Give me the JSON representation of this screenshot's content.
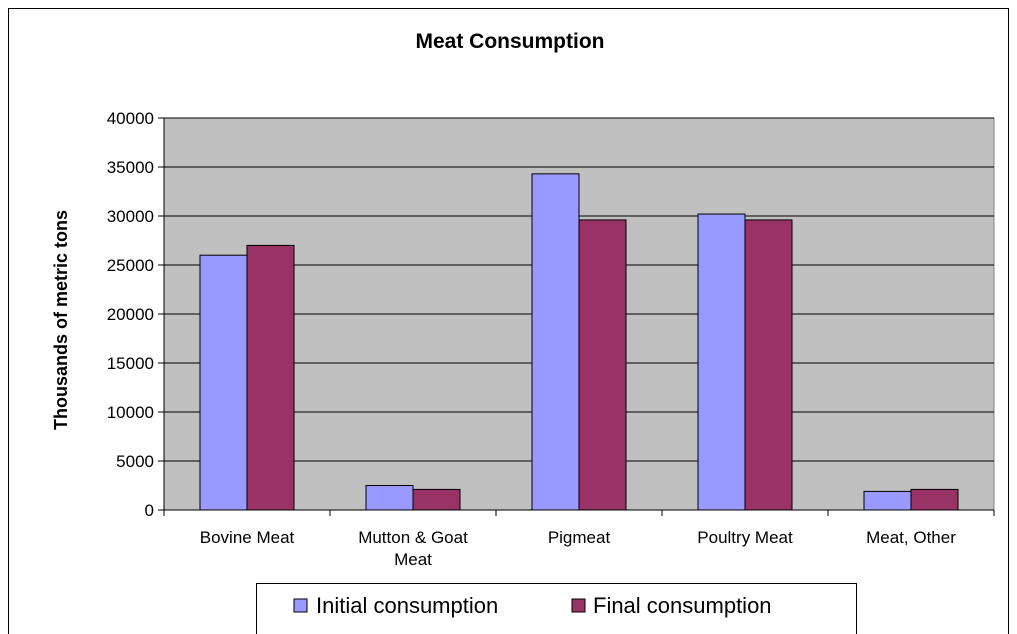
{
  "chart_data": {
    "type": "bar",
    "title": "Meat Consumption",
    "xlabel": "",
    "ylabel": "Thousands of metric tons",
    "categories": [
      [
        "Bovine Meat"
      ],
      [
        "Mutton & Goat",
        "Meat"
      ],
      [
        "Pigmeat"
      ],
      [
        "Poultry Meat"
      ],
      [
        "Meat, Other"
      ]
    ],
    "series": [
      {
        "name": "Initial consumption",
        "color": "#9999ff",
        "values": [
          26000,
          2500,
          34300,
          30200,
          1900
        ]
      },
      {
        "name": "Final consumption",
        "color": "#993366",
        "values": [
          27000,
          2100,
          29600,
          29600,
          2100
        ]
      }
    ],
    "ylim": [
      0,
      40000
    ],
    "yticks": [
      0,
      5000,
      10000,
      15000,
      20000,
      25000,
      30000,
      35000,
      40000
    ],
    "grid": true,
    "plot_background": "#c0c0c0",
    "legend_position": "bottom"
  }
}
